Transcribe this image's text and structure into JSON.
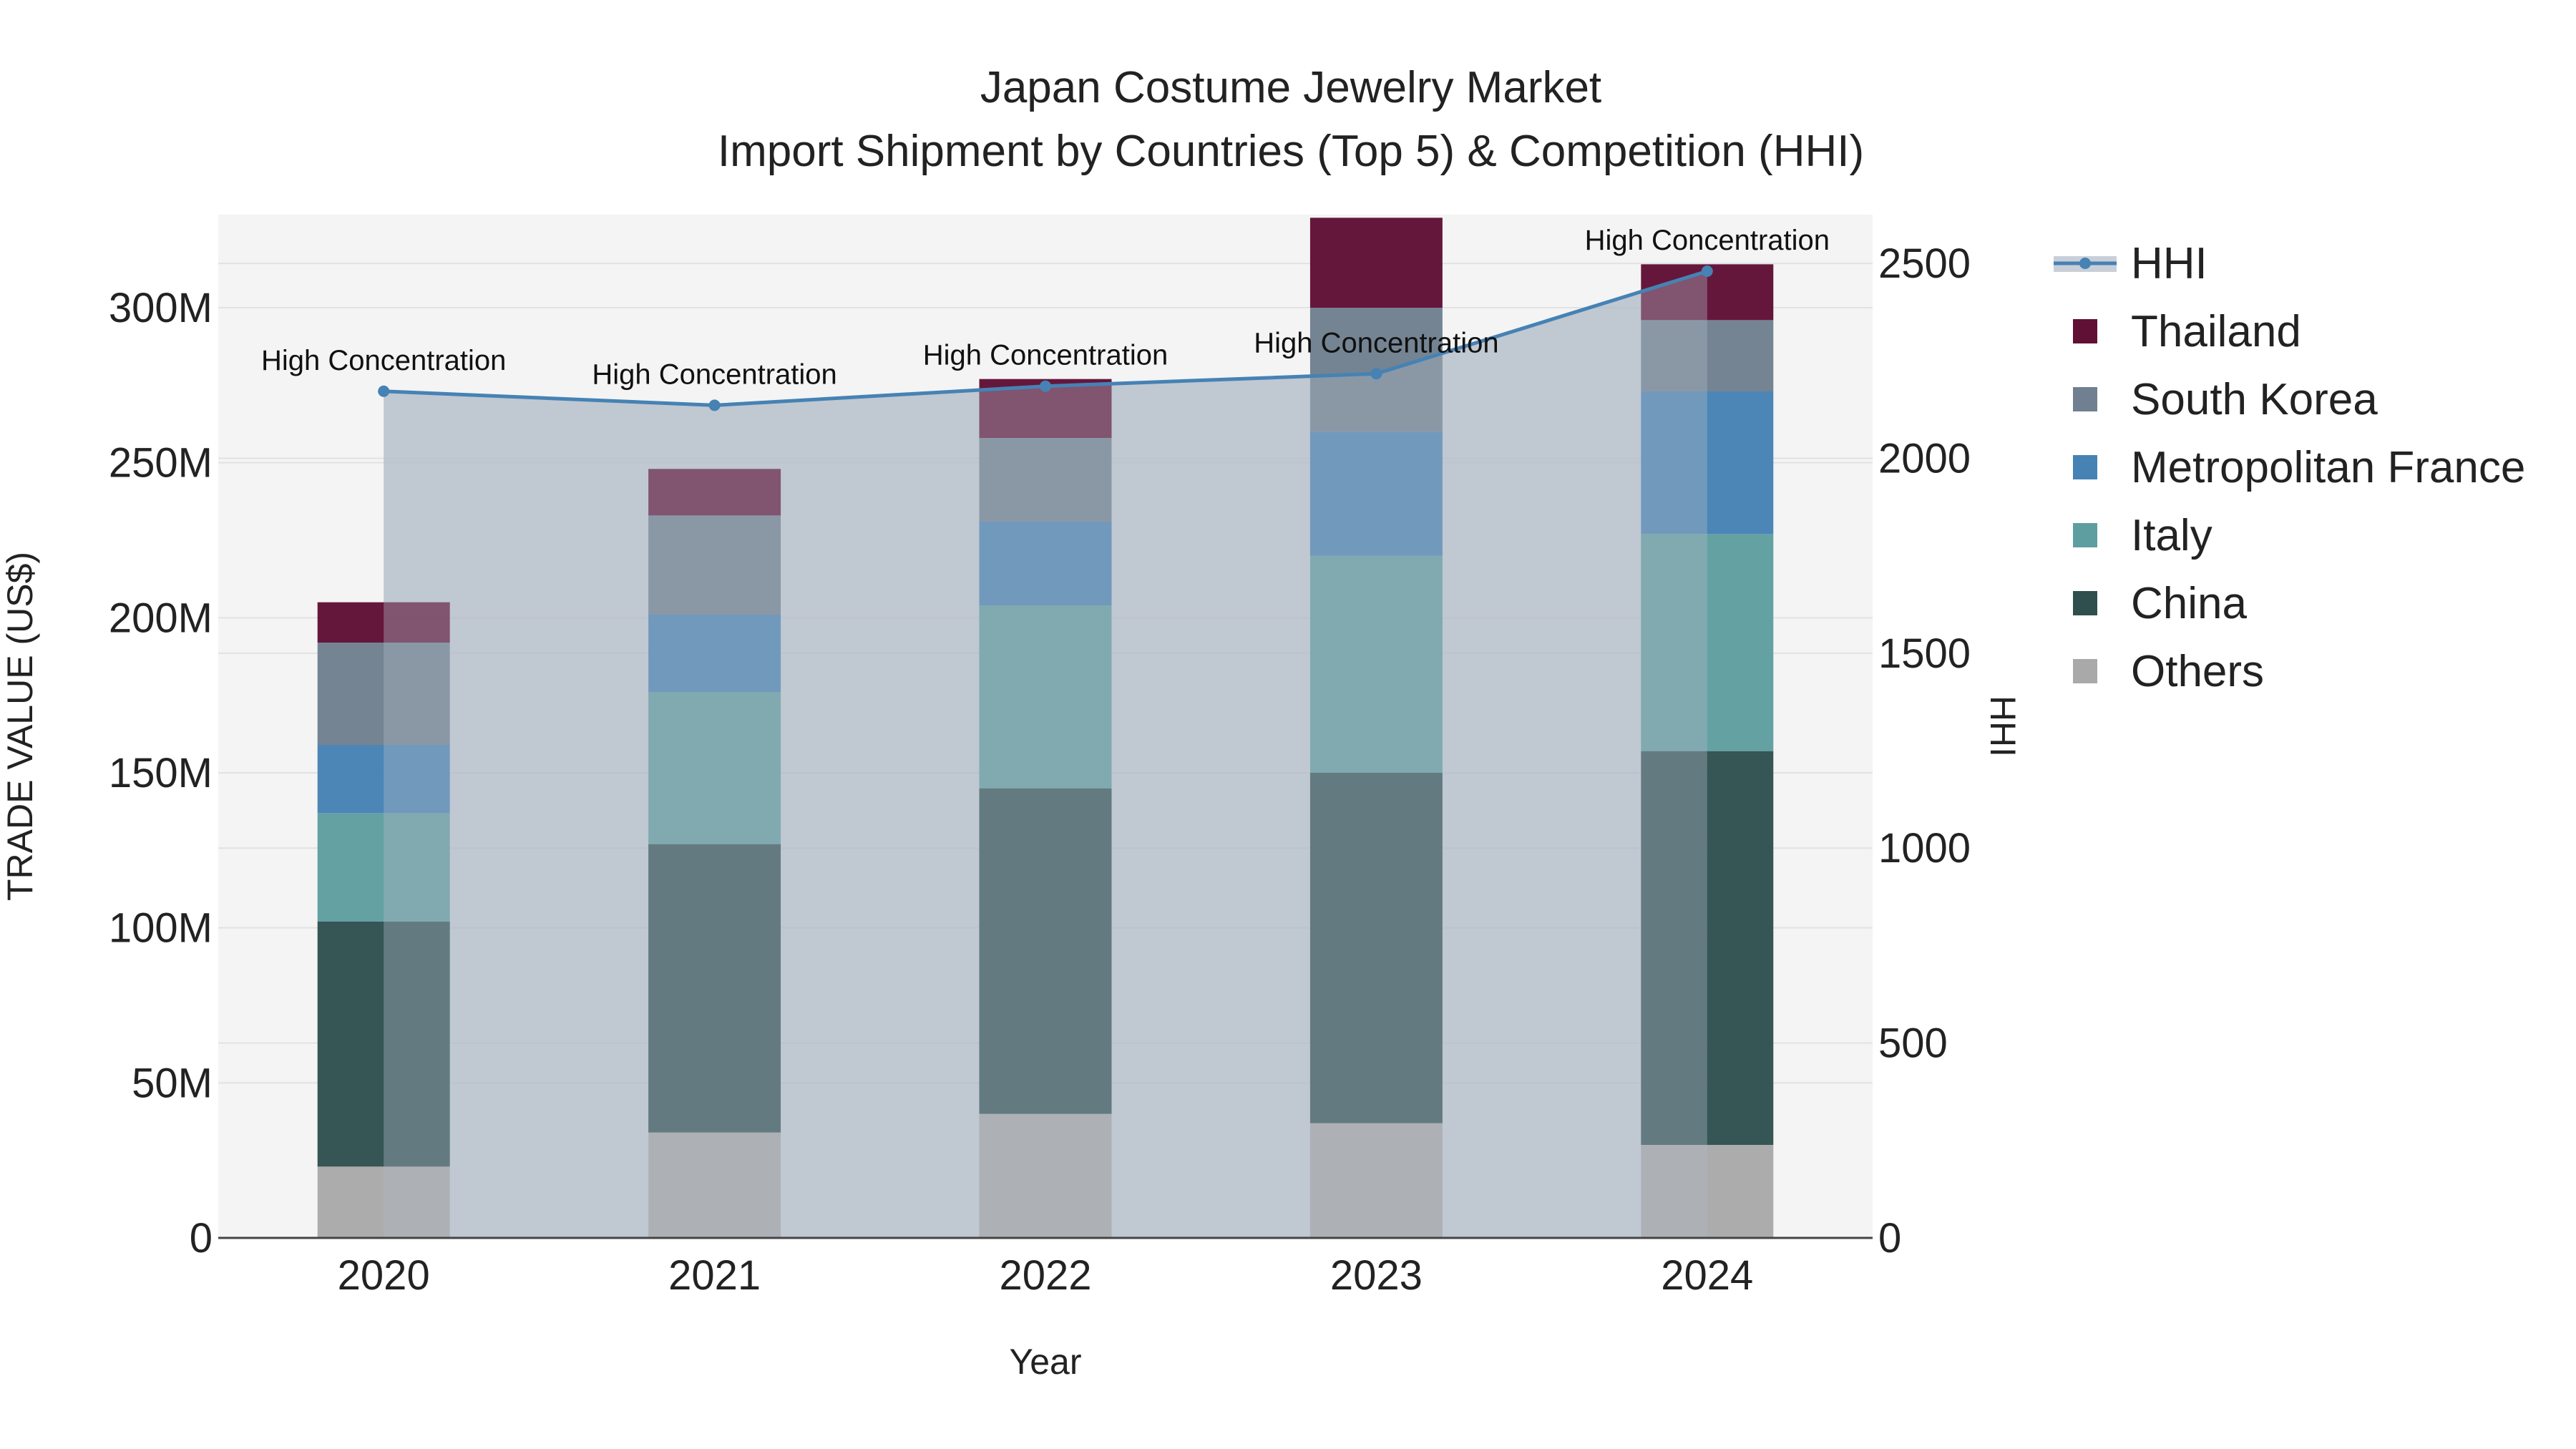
{
  "chart_data": {
    "type": "bar",
    "title": "Japan Costume Jewelry Market",
    "subtitle": "Import Shipment by Countries (Top 5) & Competition (HHI)",
    "xlabel": "Year",
    "ylabel": "TRADE VALUE (US$)",
    "y2label": "HHI",
    "categories": [
      "2020",
      "2021",
      "2022",
      "2023",
      "2024"
    ],
    "ylim": [
      0,
      330000000
    ],
    "y2lim": [
      0,
      2625
    ],
    "yticks": [
      {
        "value": 0,
        "label": "0"
      },
      {
        "value": 50000000,
        "label": "50M"
      },
      {
        "value": 100000000,
        "label": "100M"
      },
      {
        "value": 150000000,
        "label": "150M"
      },
      {
        "value": 200000000,
        "label": "200M"
      },
      {
        "value": 250000000,
        "label": "250M"
      },
      {
        "value": 300000000,
        "label": "300M"
      }
    ],
    "y2ticks": [
      {
        "value": 0,
        "label": "0"
      },
      {
        "value": 500,
        "label": "500"
      },
      {
        "value": 1000,
        "label": "1000"
      },
      {
        "value": 1500,
        "label": "1500"
      },
      {
        "value": 2000,
        "label": "2000"
      },
      {
        "value": 2500,
        "label": "2500"
      }
    ],
    "stack_order": [
      "Others",
      "China",
      "Italy",
      "Metropolitan France",
      "South Korea",
      "Thailand"
    ],
    "series": [
      {
        "name": "Others",
        "color": "#A9A9A9",
        "values": [
          23000000,
          34000000,
          40000000,
          37000000,
          30000000
        ]
      },
      {
        "name": "China",
        "color": "#2F4F4F",
        "values": [
          79000000,
          93000000,
          105000000,
          113000000,
          127000000
        ]
      },
      {
        "name": "Italy",
        "color": "#5F9EA0",
        "values": [
          35000000,
          49000000,
          59000000,
          70000000,
          70000000
        ]
      },
      {
        "name": "Metropolitan France",
        "color": "#4682B4",
        "values": [
          22000000,
          25000000,
          27000000,
          40000000,
          46000000
        ]
      },
      {
        "name": "South Korea",
        "color": "#708090",
        "values": [
          33000000,
          32000000,
          27000000,
          40000000,
          23000000
        ]
      },
      {
        "name": "Thailand",
        "color": "#601035",
        "values": [
          13000000,
          15000000,
          19000000,
          29000000,
          18000000
        ]
      }
    ],
    "hhi": {
      "name": "HHI",
      "color": "#4682B4",
      "values": [
        2172,
        2136,
        2185,
        2217,
        2480
      ],
      "annotations": [
        "High Concentration",
        "High Concentration",
        "High Concentration",
        "High Concentration",
        "High Concentration"
      ]
    },
    "legend": [
      "HHI",
      "Thailand",
      "South Korea",
      "Metropolitan France",
      "Italy",
      "China",
      "Others"
    ],
    "legend_position": "right",
    "grid": true
  }
}
